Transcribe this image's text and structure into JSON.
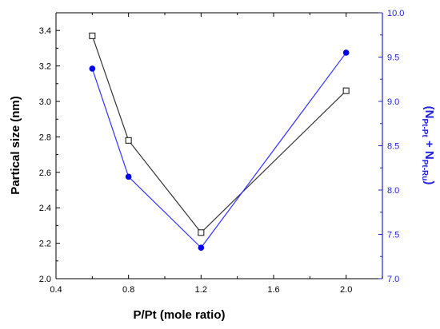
{
  "colors": {
    "left_series": "#333333",
    "right_series": "#3333ff",
    "right_axis": "#2222dd",
    "marker_fill_right": "#0000ee",
    "axis": "#000000"
  },
  "chart_data": {
    "type": "line",
    "xlabel": "P/Pt (mole ratio)",
    "ylabel_left": "Partical size (nm)",
    "ylabel_right": {
      "open": "(N",
      "sub1": "Pt-Pt",
      "plus": " + N",
      "sub2": "Pt-Ru",
      "close": ")"
    },
    "xlim": [
      0.4,
      2.2
    ],
    "ylim_left": [
      2.0,
      3.5
    ],
    "ylim_right": [
      7.0,
      10.0
    ],
    "x_ticks": [
      "0.4",
      "0.8",
      "1.2",
      "1.6",
      "2.0"
    ],
    "x_tick_values": [
      0.4,
      0.8,
      1.2,
      1.6,
      2.0
    ],
    "y_left_ticks": [
      "2.0",
      "2.2",
      "2.4",
      "2.6",
      "2.8",
      "3.0",
      "3.2",
      "3.4"
    ],
    "y_left_tick_values": [
      2.0,
      2.2,
      2.4,
      2.6,
      2.8,
      3.0,
      3.2,
      3.4
    ],
    "y_right_ticks": [
      "7.0",
      "7.5",
      "8.0",
      "8.5",
      "9.0",
      "9.5",
      "10.0"
    ],
    "y_right_tick_values": [
      7.0,
      7.5,
      8.0,
      8.5,
      9.0,
      9.5,
      10.0
    ],
    "x": [
      0.6,
      0.8,
      1.2,
      2.0
    ],
    "series": [
      {
        "axis": "left",
        "marker": "open-square",
        "values": [
          3.37,
          2.78,
          2.26,
          3.06
        ]
      },
      {
        "axis": "right",
        "marker": "filled-circle",
        "values": [
          9.37,
          8.15,
          7.35,
          9.55
        ]
      }
    ],
    "grid": false,
    "legend": "none"
  }
}
